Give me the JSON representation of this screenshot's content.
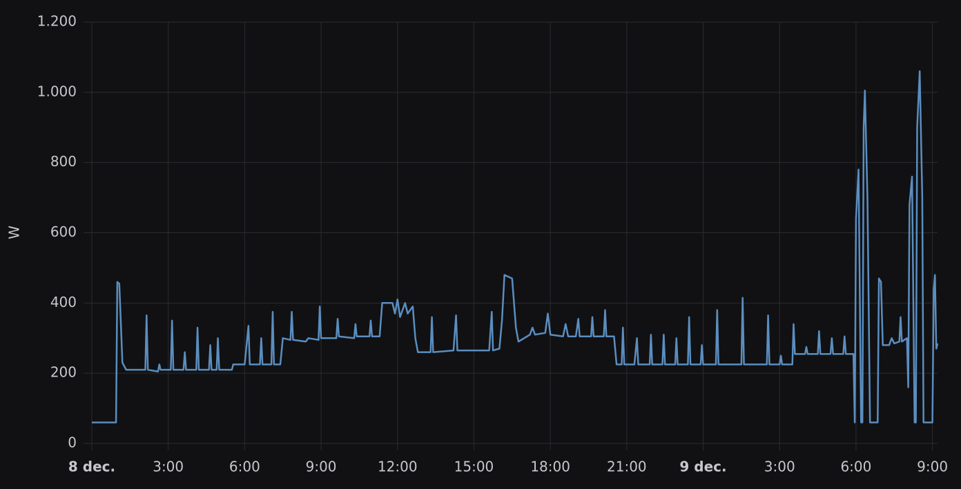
{
  "chart_data": {
    "type": "line",
    "ylabel": "W",
    "color": "#5b8ec0",
    "grid": true,
    "xlim": [
      0,
      33.2
    ],
    "ylim": [
      0,
      1200
    ],
    "xticks": [
      {
        "value": 0,
        "label": "8 dec."
      },
      {
        "value": 3,
        "label": "3:00"
      },
      {
        "value": 6,
        "label": "6:00"
      },
      {
        "value": 9,
        "label": "9:00"
      },
      {
        "value": 12,
        "label": "12:00"
      },
      {
        "value": 15,
        "label": "15:00"
      },
      {
        "value": 18,
        "label": "18:00"
      },
      {
        "value": 21,
        "label": "21:00"
      },
      {
        "value": 24,
        "label": "9 dec."
      },
      {
        "value": 27,
        "label": "3:00"
      },
      {
        "value": 30,
        "label": "6:00"
      },
      {
        "value": 33,
        "label": "9:00"
      }
    ],
    "yticks": [
      0,
      200,
      400,
      600,
      800,
      {
        "value": 1000,
        "label": "1.000"
      },
      {
        "value": 1200,
        "label": "1.200"
      }
    ],
    "x": [
      0,
      0.95,
      1.0,
      1.08,
      1.2,
      1.35,
      2.1,
      2.15,
      2.2,
      2.6,
      2.65,
      2.7,
      3.1,
      3.15,
      3.2,
      3.6,
      3.65,
      3.7,
      4.1,
      4.15,
      4.2,
      4.6,
      4.65,
      4.7,
      4.9,
      4.95,
      5.0,
      5.5,
      5.55,
      6.0,
      6.15,
      6.2,
      6.6,
      6.65,
      6.7,
      7.05,
      7.1,
      7.15,
      7.4,
      7.5,
      7.8,
      7.85,
      7.9,
      8.4,
      8.5,
      8.9,
      8.95,
      9.0,
      9.6,
      9.65,
      9.7,
      10.3,
      10.35,
      10.4,
      10.9,
      10.95,
      11.0,
      11.3,
      11.4,
      11.8,
      11.9,
      12.0,
      12.1,
      12.3,
      12.4,
      12.6,
      12.7,
      12.8,
      13.3,
      13.35,
      13.4,
      14.2,
      14.3,
      14.35,
      15.6,
      15.7,
      15.75,
      16.0,
      16.1,
      16.2,
      16.5,
      16.65,
      16.75,
      17.2,
      17.3,
      17.4,
      17.8,
      17.9,
      18.0,
      18.5,
      18.6,
      18.7,
      19.0,
      19.1,
      19.15,
      19.6,
      19.65,
      19.7,
      20.1,
      20.15,
      20.2,
      20.5,
      20.6,
      20.8,
      20.85,
      20.9,
      21.3,
      21.4,
      21.45,
      21.9,
      21.95,
      22.0,
      22.4,
      22.45,
      22.5,
      22.9,
      22.95,
      23.0,
      23.4,
      23.45,
      23.5,
      23.9,
      23.95,
      24.0,
      24.5,
      24.55,
      24.6,
      25.5,
      25.55,
      25.6,
      26.5,
      26.55,
      26.6,
      27.0,
      27.05,
      27.1,
      27.5,
      27.55,
      27.6,
      28.0,
      28.05,
      28.1,
      28.5,
      28.55,
      28.6,
      29.0,
      29.05,
      29.1,
      29.5,
      29.55,
      29.6,
      29.9,
      29.95,
      30.0,
      30.1,
      30.2,
      30.25,
      30.3,
      30.35,
      30.45,
      30.55,
      30.85,
      30.9,
      30.98,
      31.05,
      31.3,
      31.4,
      31.5,
      31.7,
      31.75,
      31.8,
      32.0,
      32.05,
      32.1,
      32.2,
      32.3,
      32.35,
      32.4,
      32.5,
      32.6,
      32.65,
      33.0,
      33.05,
      33.1,
      33.15,
      33.2
    ],
    "values": [
      60,
      60,
      460,
      455,
      230,
      210,
      210,
      365,
      210,
      205,
      225,
      210,
      210,
      350,
      210,
      210,
      260,
      210,
      210,
      330,
      210,
      210,
      280,
      210,
      210,
      300,
      210,
      210,
      225,
      225,
      335,
      225,
      225,
      300,
      225,
      225,
      375,
      225,
      225,
      300,
      295,
      375,
      295,
      290,
      300,
      295,
      390,
      300,
      300,
      355,
      305,
      300,
      340,
      305,
      305,
      350,
      305,
      305,
      400,
      400,
      370,
      410,
      360,
      400,
      370,
      390,
      300,
      260,
      260,
      360,
      260,
      265,
      365,
      265,
      265,
      375,
      265,
      270,
      350,
      480,
      470,
      330,
      290,
      310,
      330,
      310,
      315,
      370,
      310,
      305,
      340,
      305,
      305,
      355,
      305,
      305,
      360,
      305,
      305,
      380,
      305,
      305,
      225,
      225,
      330,
      225,
      225,
      300,
      225,
      225,
      310,
      225,
      225,
      310,
      225,
      225,
      300,
      225,
      225,
      360,
      225,
      225,
      280,
      225,
      225,
      380,
      225,
      225,
      415,
      225,
      225,
      365,
      225,
      225,
      250,
      225,
      225,
      340,
      255,
      255,
      275,
      255,
      255,
      320,
      255,
      255,
      300,
      255,
      255,
      305,
      255,
      255,
      60,
      640,
      780,
      60,
      60,
      900,
      1005,
      700,
      60,
      60,
      470,
      460,
      280,
      280,
      300,
      285,
      290,
      360,
      290,
      300,
      160,
      680,
      760,
      60,
      60,
      900,
      1060,
      700,
      60,
      60,
      440,
      480,
      270,
      285
    ]
  }
}
